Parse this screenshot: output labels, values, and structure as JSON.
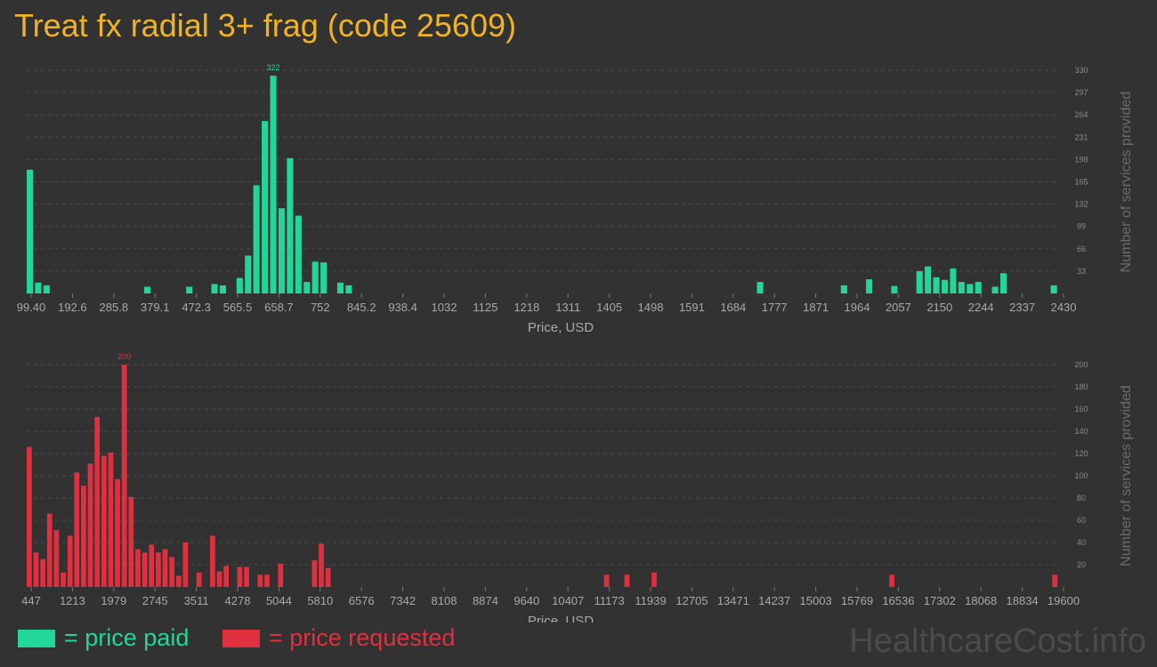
{
  "title": "Treat fx radial 3+ frag (code 25609)",
  "watermark": "HealthcareCost.info",
  "legend": {
    "paid_label": "= price paid",
    "requested_label": "= price requested"
  },
  "colors": {
    "paid": "#22d69a",
    "requested": "#e0303f",
    "title": "#f0b323",
    "background": "#323232"
  },
  "chart_data": [
    {
      "type": "bar",
      "name": "price paid",
      "title": "",
      "xlabel": "Price, USD",
      "ylabel": "Number of services provided",
      "ylim": [
        0,
        330
      ],
      "y_ticks": [
        33,
        66,
        99,
        132,
        165,
        198,
        231,
        264,
        297,
        330
      ],
      "x_tick_labels": [
        "99.40",
        "192.6",
        "285.8",
        "379.1",
        "472.3",
        "565.5",
        "658.7",
        "752",
        "845.2",
        "938.4",
        "1032",
        "1125",
        "1218",
        "1311",
        "1405",
        "1498",
        "1591",
        "1684",
        "1777",
        "1871",
        "1964",
        "2057",
        "2150",
        "2244",
        "2337",
        "2430"
      ],
      "peak_label": "322",
      "values": [
        183,
        16,
        12,
        0,
        0,
        0,
        0,
        0,
        0,
        0,
        0,
        0,
        0,
        0,
        10,
        0,
        0,
        0,
        0,
        10,
        0,
        0,
        14,
        12,
        0,
        23,
        56,
        160,
        255,
        322,
        126,
        200,
        115,
        17,
        47,
        46,
        0,
        16,
        12,
        0,
        0,
        0,
        0,
        0,
        0,
        0,
        0,
        0,
        0,
        0,
        0,
        0,
        0,
        0,
        0,
        0,
        0,
        0,
        0,
        0,
        0,
        0,
        0,
        0,
        0,
        0,
        0,
        0,
        0,
        0,
        0,
        0,
        0,
        0,
        0,
        0,
        0,
        0,
        0,
        0,
        0,
        0,
        0,
        0,
        0,
        0,
        0,
        17,
        0,
        0,
        0,
        0,
        0,
        0,
        0,
        0,
        0,
        12,
        0,
        0,
        21,
        0,
        0,
        11,
        0,
        0,
        33,
        40,
        24,
        20,
        37,
        17,
        14,
        17,
        0,
        10,
        30,
        0,
        0,
        0,
        0,
        0,
        12
      ]
    },
    {
      "type": "bar",
      "name": "price requested",
      "title": "",
      "xlabel": "Price, USD",
      "ylabel": "Number of services provided",
      "ylim": [
        0,
        200
      ],
      "y_ticks": [
        20,
        40,
        60,
        80,
        100,
        120,
        140,
        160,
        180,
        200
      ],
      "x_tick_labels": [
        "447",
        "1213",
        "1979",
        "2745",
        "3511",
        "4278",
        "5044",
        "5810",
        "6576",
        "7342",
        "8108",
        "8874",
        "9640",
        "10407",
        "11173",
        "11939",
        "12705",
        "13471",
        "14237",
        "15003",
        "15769",
        "16536",
        "17302",
        "18068",
        "18834",
        "19600"
      ],
      "peak_label": "200",
      "values": [
        126,
        31,
        25,
        66,
        51,
        13,
        46,
        103,
        91,
        111,
        153,
        118,
        121,
        97,
        200,
        81,
        34,
        31,
        38,
        31,
        34,
        27,
        10,
        40,
        0,
        13,
        0,
        46,
        14,
        19,
        0,
        18,
        18,
        0,
        11,
        11,
        0,
        21,
        0,
        0,
        0,
        0,
        24,
        39,
        17,
        0,
        0,
        0,
        0,
        0,
        0,
        0,
        0,
        0,
        0,
        0,
        0,
        0,
        0,
        0,
        0,
        0,
        0,
        0,
        0,
        0,
        0,
        0,
        0,
        0,
        0,
        0,
        0,
        0,
        0,
        0,
        0,
        0,
        0,
        0,
        0,
        0,
        0,
        0,
        0,
        11,
        0,
        0,
        11,
        0,
        0,
        0,
        13,
        0,
        0,
        0,
        0,
        0,
        0,
        0,
        0,
        0,
        0,
        0,
        0,
        0,
        0,
        0,
        0,
        0,
        0,
        0,
        0,
        0,
        0,
        0,
        0,
        0,
        0,
        0,
        0,
        0,
        0,
        0,
        0,
        0,
        0,
        11,
        0,
        0,
        0,
        0,
        0,
        0,
        0,
        0,
        0,
        0,
        0,
        0,
        0,
        0,
        0,
        0,
        0,
        0,
        0,
        0,
        0,
        0,
        0,
        11
      ]
    }
  ]
}
